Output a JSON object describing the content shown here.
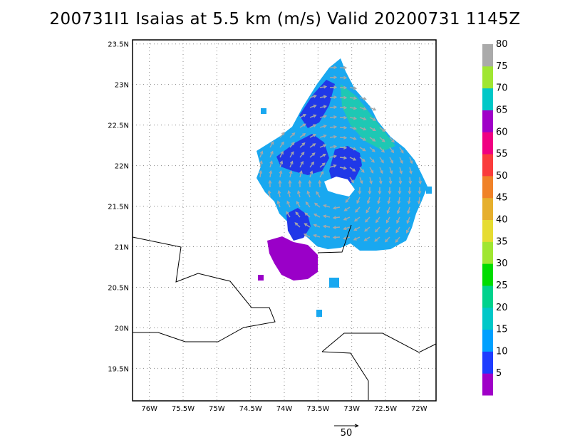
{
  "title": "200731I1 Isaias at 5.5 km (m/s) Valid 20200731 1145Z",
  "lat_labels": [
    "23.5N",
    "23N",
    "22.5N",
    "22N",
    "21.5N",
    "21N",
    "20.5N",
    "20N",
    "19.5N"
  ],
  "lat_values": [
    23.5,
    23,
    22.5,
    22,
    21.5,
    21,
    20.5,
    20,
    19.5
  ],
  "lon_labels": [
    "76W",
    "75.5W",
    "75W",
    "74.5W",
    "74W",
    "73.5W",
    "73W",
    "72.5W",
    "72W"
  ],
  "lon_values": [
    -76,
    -75.5,
    -75,
    -74.5,
    -74,
    -73.5,
    -73,
    -72.5,
    -72
  ],
  "map_extent": {
    "lon_min": -76.25,
    "lon_max": -71.75,
    "lat_min": 19.1,
    "lat_max": 23.55
  },
  "colorbar": {
    "labels": [
      "5",
      "10",
      "15",
      "20",
      "25",
      "30",
      "35",
      "40",
      "45",
      "50",
      "55",
      "60",
      "65",
      "70",
      "75",
      "80"
    ],
    "colors": [
      "#a000c8",
      "#1e3cff",
      "#00a0ff",
      "#00c8c8",
      "#00d28c",
      "#00dc00",
      "#a0e632",
      "#e6dc32",
      "#e6af2d",
      "#f08228",
      "#fa3c3c",
      "#f00082",
      "#a000c8",
      "#00c8c8",
      "#a0e632",
      "#aaaaaa"
    ]
  },
  "vector_scale_label": "50",
  "colors": {
    "grid": "#888888",
    "coast": "#000000",
    "arrow": "#a8a8a8"
  }
}
